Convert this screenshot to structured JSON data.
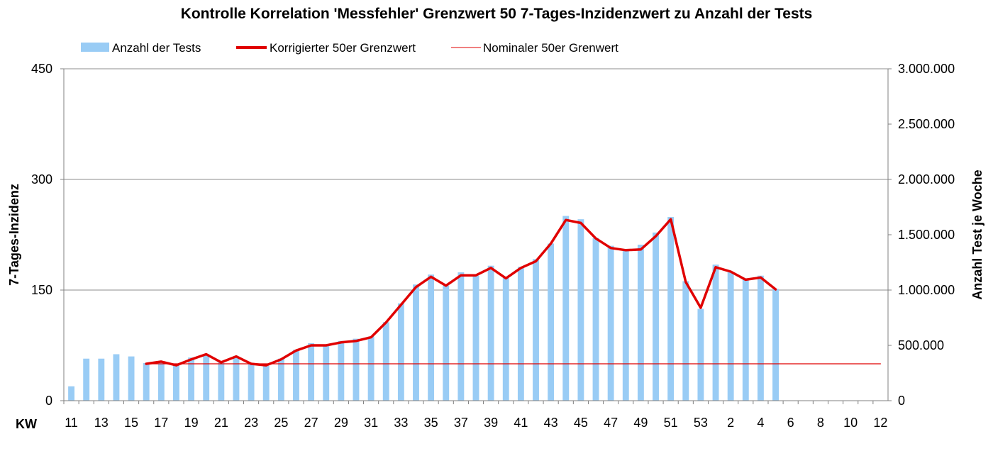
{
  "chart_data": {
    "type": "bar",
    "title": "Kontrolle Korrelation 'Messfehler' Grenzwert 50 7-Tages-Inzidenzwert zu Anzahl der Tests",
    "xlabel": "KW",
    "ylabel_left": "7-Tages-Inzidenz",
    "ylabel_right": "Anzahl Test je Woche",
    "ylim_left": [
      0,
      450
    ],
    "ylim_right": [
      0,
      3000000
    ],
    "yticks_left": [
      "0",
      "150",
      "300",
      "450"
    ],
    "yticks_right": [
      "0",
      "500.000",
      "1.000.000",
      "1.500.000",
      "2.000.000",
      "2.500.000",
      "3.000.000"
    ],
    "grid": true,
    "legend_position": "top",
    "categories": [
      "11",
      "12",
      "13",
      "14",
      "15",
      "16",
      "17",
      "18",
      "19",
      "20",
      "21",
      "22",
      "23",
      "24",
      "25",
      "26",
      "27",
      "28",
      "29",
      "30",
      "31",
      "32",
      "33",
      "34",
      "35",
      "36",
      "37",
      "38",
      "39",
      "40",
      "41",
      "42",
      "43",
      "44",
      "45",
      "46",
      "47",
      "48",
      "49",
      "50",
      "51",
      "52",
      "53",
      "1",
      "2",
      "3",
      "4",
      "5",
      "6",
      "7",
      "8",
      "9",
      "10",
      "11",
      "12"
    ],
    "xtick_labels": [
      "11",
      "13",
      "15",
      "17",
      "19",
      "21",
      "23",
      "25",
      "27",
      "29",
      "31",
      "33",
      "35",
      "37",
      "39",
      "41",
      "43",
      "45",
      "47",
      "49",
      "51",
      "53",
      "2",
      "4",
      "6",
      "8",
      "10",
      "12"
    ],
    "series": [
      {
        "name": "Anzahl der Tests",
        "axis": "right",
        "color": "#99ccf5",
        "values": [
          130000,
          380000,
          380000,
          420000,
          400000,
          340000,
          345000,
          320000,
          390000,
          420000,
          350000,
          400000,
          330000,
          315000,
          380000,
          460000,
          520000,
          500000,
          540000,
          560000,
          580000,
          710000,
          880000,
          1050000,
          1140000,
          1040000,
          1160000,
          1130000,
          1220000,
          1110000,
          1210000,
          1280000,
          1420000,
          1670000,
          1640000,
          1470000,
          1400000,
          1360000,
          1410000,
          1520000,
          1660000,
          1080000,
          830000,
          1230000,
          1160000,
          1100000,
          1130000,
          1010000,
          null,
          null,
          null,
          null,
          null,
          null,
          null
        ]
      },
      {
        "name": "Korrigierter 50er Grenzwert",
        "axis": "left",
        "color": "#e00000",
        "values": [
          null,
          null,
          null,
          null,
          null,
          50,
          53,
          48,
          56,
          63,
          52,
          60,
          50,
          48,
          56,
          68,
          75,
          75,
          79,
          81,
          86,
          106,
          130,
          154,
          168,
          156,
          170,
          170,
          180,
          166,
          180,
          189,
          213,
          245,
          241,
          220,
          207,
          204,
          205,
          223,
          246,
          161,
          126,
          181,
          175,
          164,
          167,
          151,
          null,
          null,
          null,
          null,
          null,
          null,
          null
        ]
      },
      {
        "name": "Nominaler 50er Grenwert",
        "axis": "left",
        "color": "#e00000",
        "values": [
          null,
          null,
          null,
          null,
          null,
          50,
          50,
          50,
          50,
          50,
          50,
          50,
          50,
          50,
          50,
          50,
          50,
          50,
          50,
          50,
          50,
          50,
          50,
          50,
          50,
          50,
          50,
          50,
          50,
          50,
          50,
          50,
          50,
          50,
          50,
          50,
          50,
          50,
          50,
          50,
          50,
          50,
          50,
          50,
          50,
          50,
          50,
          50,
          50,
          50,
          50,
          50,
          50,
          50,
          50
        ]
      }
    ]
  }
}
